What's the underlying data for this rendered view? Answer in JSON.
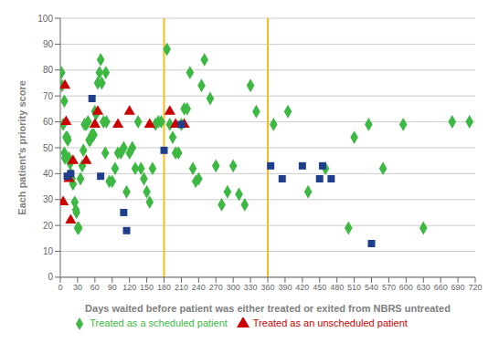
{
  "chart_data": {
    "type": "scatter",
    "xlabel": "Days waited before patient was either treated or exited from NBRS untreated",
    "ylabel": "Each patient's priority score",
    "xlim": [
      0,
      720
    ],
    "ylim": [
      0,
      100
    ],
    "xticks": [
      0,
      30,
      60,
      90,
      120,
      150,
      180,
      210,
      240,
      270,
      300,
      330,
      360,
      390,
      420,
      450,
      480,
      510,
      540,
      570,
      600,
      630,
      660,
      690,
      720
    ],
    "yticks": [
      0,
      10,
      20,
      30,
      40,
      50,
      60,
      70,
      80,
      90,
      100
    ],
    "grid": "y",
    "legend": "bottom",
    "vlines": {
      "x": [
        180,
        360
      ],
      "color": "#F0C020"
    },
    "series": [
      {
        "name": "Treated as a scheduled patient",
        "color": "#3CB843",
        "marker": "diamond",
        "x": [
          3,
          5,
          7,
          8,
          10,
          12,
          13,
          15,
          17,
          18,
          20,
          22,
          25,
          27,
          28,
          30,
          32,
          35,
          38,
          40,
          42,
          45,
          48,
          50,
          52,
          55,
          58,
          60,
          62,
          65,
          68,
          70,
          72,
          75,
          78,
          80,
          85,
          90,
          95,
          100,
          105,
          110,
          115,
          120,
          125,
          130,
          135,
          140,
          145,
          150,
          155,
          160,
          165,
          170,
          175,
          185,
          190,
          195,
          200,
          205,
          210,
          215,
          220,
          225,
          230,
          235,
          240,
          245,
          250,
          260,
          270,
          280,
          290,
          300,
          310,
          320,
          330,
          340,
          370,
          395,
          430,
          460,
          500,
          510,
          535,
          560,
          595,
          630,
          680,
          710,
          2,
          7,
          79
        ],
        "values": [
          74,
          59,
          48,
          46,
          54,
          54,
          53,
          46,
          44,
          40,
          38,
          36,
          29,
          26,
          25,
          19,
          19,
          38,
          43,
          49,
          59,
          59,
          60,
          53,
          53,
          55,
          55,
          64,
          63,
          75,
          79,
          84,
          75,
          60,
          48,
          60,
          37,
          37,
          42,
          48,
          48,
          50,
          33,
          48,
          50,
          42,
          60,
          42,
          38,
          33,
          29,
          42,
          59,
          60,
          60,
          88,
          59,
          54,
          48,
          48,
          59,
          65,
          65,
          79,
          42,
          37,
          38,
          74,
          84,
          69,
          43,
          28,
          33,
          43,
          32,
          28,
          74,
          64,
          59,
          64,
          33,
          42,
          19,
          54,
          59,
          42,
          59,
          19,
          60,
          60,
          79,
          68,
          79
        ]
      },
      {
        "name": "Treated as an unscheduled patient",
        "color": "#CC0000",
        "marker": "triangle",
        "x": [
          5,
          8,
          10,
          15,
          18,
          22,
          45,
          60,
          65,
          100,
          120,
          155,
          190,
          200,
          215
        ],
        "values": [
          29,
          74,
          60,
          38,
          22,
          45,
          45,
          59,
          64,
          59,
          64,
          59,
          64,
          59,
          59
        ]
      },
      {
        "color": "#1F3E8C",
        "marker": "square",
        "x": [
          12,
          18,
          55,
          70,
          110,
          115,
          180,
          210,
          365,
          385,
          420,
          450,
          455,
          470,
          540
        ],
        "values": [
          39,
          40,
          69,
          39,
          25,
          18,
          49,
          59,
          43,
          38,
          43,
          38,
          43,
          38,
          13
        ]
      }
    ]
  }
}
